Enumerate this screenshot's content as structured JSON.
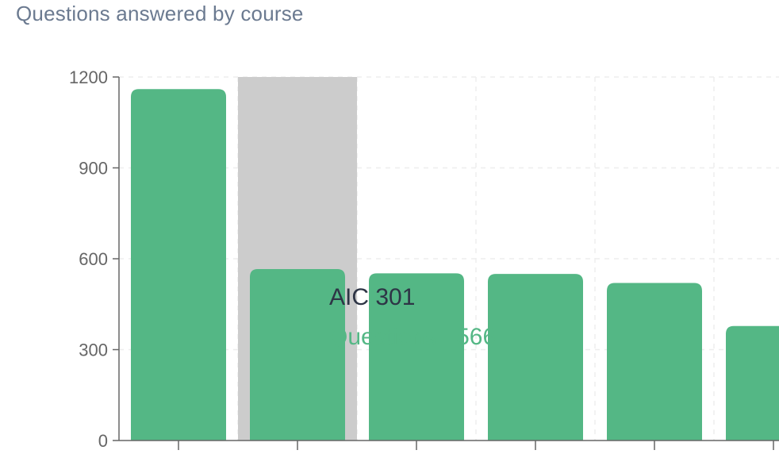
{
  "title": "Questions answered by course",
  "tooltip": {
    "course": "AIC 301",
    "series": "Questions",
    "value": 566,
    "text": "Questions : 566"
  },
  "colors": {
    "bar": "#54b785",
    "highlight": "#cccccc",
    "grid": "#eeeeee",
    "axis": "#666666"
  },
  "chart_data": {
    "type": "bar",
    "title": "Questions answered by course",
    "xlabel": "",
    "ylabel": "",
    "ylim": [
      0,
      1200
    ],
    "yticks": [
      0,
      300,
      600,
      900,
      1200
    ],
    "grid": true,
    "categories": [
      "",
      "AIC 301",
      "",
      "",
      "",
      ""
    ],
    "values": [
      1160,
      566,
      552,
      550,
      520,
      378
    ],
    "highlighted_index": 1
  }
}
